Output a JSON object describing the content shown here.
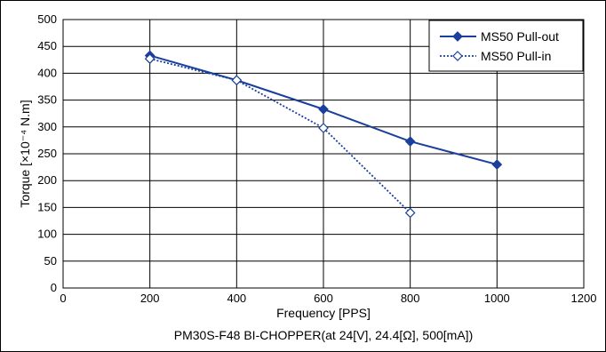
{
  "chart_data": {
    "type": "line",
    "caption": "PM30S-F48 BI-CHOPPER(at 24[V], 24.4[Ω], 500[mA])",
    "xlabel": "Frequency [PPS]",
    "ylabel": "Torque [×10⁻⁴ N.m]",
    "xlim": [
      0,
      1200
    ],
    "ylim": [
      0,
      500
    ],
    "xticks": [
      0,
      200,
      400,
      600,
      800,
      1000,
      1200
    ],
    "yticks": [
      0,
      50,
      100,
      150,
      200,
      250,
      300,
      350,
      400,
      450,
      500
    ],
    "grid": true,
    "legend_position": "top-right",
    "series": [
      {
        "name": "MS50  Pull-out",
        "line_style": "solid",
        "marker": "filled-diamond",
        "color": "#1a3f9c",
        "x": [
          200,
          400,
          600,
          800,
          1000
        ],
        "y": [
          433,
          387,
          333,
          273,
          230
        ]
      },
      {
        "name": "MS50  Pull-in",
        "line_style": "dotted",
        "marker": "open-diamond",
        "color": "#1a3f9c",
        "x": [
          200,
          400,
          600,
          800
        ],
        "y": [
          427,
          387,
          298,
          140
        ]
      }
    ]
  }
}
